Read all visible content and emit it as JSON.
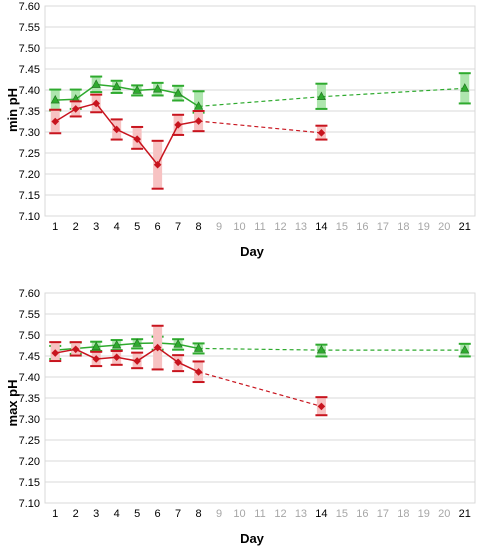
{
  "colors": {
    "green": "#2eaa2e",
    "green_band": "#aee6ae",
    "red": "#c8141e",
    "red_band": "#f7c2c2",
    "grid": "#d9d9d9"
  },
  "chart_data": [
    {
      "type": "line",
      "ylabel": "min pH",
      "xlabel": "Day",
      "ylim": [
        7.1,
        7.6
      ],
      "yticks": [
        "7.60",
        "7.55",
        "7.50",
        "7.45",
        "7.40",
        "7.35",
        "7.30",
        "7.25",
        "7.20",
        "7.15",
        "7.10"
      ],
      "xticks": [
        "1",
        "2",
        "3",
        "4",
        "5",
        "6",
        "7",
        "8",
        "9",
        "10",
        "11",
        "12",
        "13",
        "14",
        "15",
        "16",
        "17",
        "18",
        "19",
        "20",
        "21"
      ],
      "xticks_muted": [
        "9",
        "10",
        "11",
        "12",
        "13",
        "15",
        "16",
        "17",
        "18",
        "19",
        "20"
      ],
      "grid": true,
      "series": [
        {
          "color": "green",
          "marker": "triangle",
          "points": [
            {
              "x": 1,
              "y": 7.376,
              "lo": 7.351,
              "hi": 7.401
            },
            {
              "x": 2,
              "y": 7.378,
              "lo": 7.355,
              "hi": 7.401
            },
            {
              "x": 3,
              "y": 7.413,
              "lo": 7.395,
              "hi": 7.432
            },
            {
              "x": 4,
              "y": 7.408,
              "lo": 7.393,
              "hi": 7.422
            },
            {
              "x": 5,
              "y": 7.399,
              "lo": 7.387,
              "hi": 7.411
            },
            {
              "x": 6,
              "y": 7.402,
              "lo": 7.387,
              "hi": 7.417
            },
            {
              "x": 7,
              "y": 7.392,
              "lo": 7.375,
              "hi": 7.41
            },
            {
              "x": 8,
              "y": 7.361,
              "lo": 7.346,
              "hi": 7.397
            },
            {
              "x": 14,
              "y": 7.384,
              "lo": 7.355,
              "hi": 7.415
            },
            {
              "x": 21,
              "y": 7.404,
              "lo": 7.368,
              "hi": 7.44
            }
          ]
        },
        {
          "color": "red",
          "marker": "diamond",
          "points": [
            {
              "x": 1,
              "y": 7.325,
              "lo": 7.297,
              "hi": 7.353
            },
            {
              "x": 2,
              "y": 7.355,
              "lo": 7.337,
              "hi": 7.373
            },
            {
              "x": 3,
              "y": 7.368,
              "lo": 7.347,
              "hi": 7.389
            },
            {
              "x": 4,
              "y": 7.306,
              "lo": 7.282,
              "hi": 7.33
            },
            {
              "x": 5,
              "y": 7.283,
              "lo": 7.26,
              "hi": 7.312
            },
            {
              "x": 6,
              "y": 7.222,
              "lo": 7.165,
              "hi": 7.279
            },
            {
              "x": 7,
              "y": 7.317,
              "lo": 7.293,
              "hi": 7.341
            },
            {
              "x": 8,
              "y": 7.326,
              "lo": 7.302,
              "hi": 7.35
            },
            {
              "x": 14,
              "y": 7.298,
              "lo": 7.282,
              "hi": 7.315
            }
          ]
        }
      ]
    },
    {
      "type": "line",
      "ylabel": "max pH",
      "xlabel": "Day",
      "ylim": [
        7.1,
        7.6
      ],
      "yticks": [
        "7.60",
        "7.55",
        "7.50",
        "7.45",
        "7.40",
        "7.35",
        "7.30",
        "7.25",
        "7.20",
        "7.15",
        "7.10"
      ],
      "xticks": [
        "1",
        "2",
        "3",
        "4",
        "5",
        "6",
        "7",
        "8",
        "9",
        "10",
        "11",
        "12",
        "13",
        "14",
        "15",
        "16",
        "17",
        "18",
        "19",
        "20",
        "21"
      ],
      "xticks_muted": [
        "9",
        "10",
        "11",
        "12",
        "13",
        "15",
        "16",
        "17",
        "18",
        "19",
        "20"
      ],
      "grid": true,
      "series": [
        {
          "color": "green",
          "marker": "triangle",
          "points": [
            {
              "x": 1,
              "y": 7.464,
              "lo": 7.443,
              "hi": 7.474
            },
            {
              "x": 2,
              "y": 7.468,
              "lo": 7.455,
              "hi": 7.482
            },
            {
              "x": 3,
              "y": 7.472,
              "lo": 7.462,
              "hi": 7.484
            },
            {
              "x": 4,
              "y": 7.476,
              "lo": 7.464,
              "hi": 7.488
            },
            {
              "x": 5,
              "y": 7.48,
              "lo": 7.468,
              "hi": 7.49
            },
            {
              "x": 6,
              "y": 7.481,
              "lo": 7.465,
              "hi": 7.496
            },
            {
              "x": 7,
              "y": 7.478,
              "lo": 7.465,
              "hi": 7.49
            },
            {
              "x": 8,
              "y": 7.468,
              "lo": 7.456,
              "hi": 7.48
            },
            {
              "x": 14,
              "y": 7.464,
              "lo": 7.449,
              "hi": 7.477
            },
            {
              "x": 21,
              "y": 7.464,
              "lo": 7.449,
              "hi": 7.479
            }
          ]
        },
        {
          "color": "red",
          "marker": "diamond",
          "points": [
            {
              "x": 1,
              "y": 7.457,
              "lo": 7.438,
              "hi": 7.483
            },
            {
              "x": 2,
              "y": 7.466,
              "lo": 7.451,
              "hi": 7.483
            },
            {
              "x": 3,
              "y": 7.443,
              "lo": 7.426,
              "hi": 7.46
            },
            {
              "x": 4,
              "y": 7.447,
              "lo": 7.429,
              "hi": 7.462
            },
            {
              "x": 5,
              "y": 7.438,
              "lo": 7.421,
              "hi": 7.458
            },
            {
              "x": 6,
              "y": 7.47,
              "lo": 7.418,
              "hi": 7.522
            },
            {
              "x": 7,
              "y": 7.435,
              "lo": 7.414,
              "hi": 7.452
            },
            {
              "x": 8,
              "y": 7.412,
              "lo": 7.388,
              "hi": 7.437
            },
            {
              "x": 14,
              "y": 7.33,
              "lo": 7.309,
              "hi": 7.352
            }
          ]
        }
      ]
    }
  ]
}
